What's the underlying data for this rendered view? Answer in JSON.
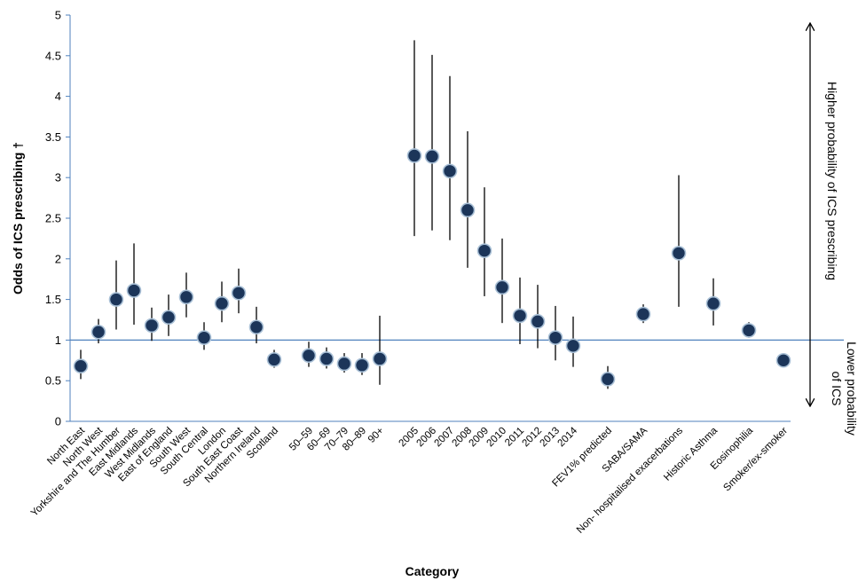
{
  "chart_data": {
    "type": "scatter",
    "title": "",
    "xlabel": "Category",
    "ylabel": "Odds of ICS prescribing †",
    "ylim": [
      0,
      5
    ],
    "yticks": [
      0,
      0.5,
      1,
      1.5,
      2,
      2.5,
      3,
      3.5,
      4,
      4.5,
      5
    ],
    "reference_line": 1,
    "annotations": {
      "upper": "Higher probability of ICS prescribing",
      "lower_line1": "Lower probability",
      "lower_line2": "of ICS"
    },
    "points": [
      {
        "category": "North East",
        "value": 0.68,
        "low": 0.52,
        "high": 0.88
      },
      {
        "category": "North West",
        "value": 1.1,
        "low": 0.96,
        "high": 1.26
      },
      {
        "category": "Yorkshire and The Humber",
        "value": 1.5,
        "low": 1.13,
        "high": 1.98
      },
      {
        "category": "East Midlands",
        "value": 1.61,
        "low": 1.19,
        "high": 2.19
      },
      {
        "category": "West Midlands",
        "value": 1.18,
        "low": 0.99,
        "high": 1.4
      },
      {
        "category": "East of England",
        "value": 1.28,
        "low": 1.05,
        "high": 1.56
      },
      {
        "category": "South West",
        "value": 1.53,
        "low": 1.28,
        "high": 1.83
      },
      {
        "category": "South Central",
        "value": 1.03,
        "low": 0.88,
        "high": 1.22
      },
      {
        "category": "London",
        "value": 1.45,
        "low": 1.22,
        "high": 1.72
      },
      {
        "category": "South East Coast",
        "value": 1.58,
        "low": 1.33,
        "high": 1.88
      },
      {
        "category": "Northern Ireland",
        "value": 1.16,
        "low": 0.96,
        "high": 1.41
      },
      {
        "category": "Scotland",
        "value": 0.76,
        "low": 0.66,
        "high": 0.88
      },
      {
        "category": "50–59",
        "value": 0.81,
        "low": 0.67,
        "high": 0.98
      },
      {
        "category": "60–69",
        "value": 0.77,
        "low": 0.65,
        "high": 0.91
      },
      {
        "category": "70–79",
        "value": 0.71,
        "low": 0.6,
        "high": 0.84
      },
      {
        "category": "80–89",
        "value": 0.69,
        "low": 0.57,
        "high": 0.84
      },
      {
        "category": "90+",
        "value": 0.77,
        "low": 0.45,
        "high": 1.3
      },
      {
        "category": "2005",
        "value": 3.27,
        "low": 2.28,
        "high": 4.69
      },
      {
        "category": "2006",
        "value": 3.26,
        "low": 2.35,
        "high": 4.51
      },
      {
        "category": "2007",
        "value": 3.08,
        "low": 2.23,
        "high": 4.25
      },
      {
        "category": "2008",
        "value": 2.6,
        "low": 1.89,
        "high": 3.57
      },
      {
        "category": "2009",
        "value": 2.1,
        "low": 1.54,
        "high": 2.88
      },
      {
        "category": "2010",
        "value": 1.65,
        "low": 1.21,
        "high": 2.25
      },
      {
        "category": "2011",
        "value": 1.3,
        "low": 0.95,
        "high": 1.77
      },
      {
        "category": "2012",
        "value": 1.23,
        "low": 0.9,
        "high": 1.68
      },
      {
        "category": "2013",
        "value": 1.03,
        "low": 0.75,
        "high": 1.42
      },
      {
        "category": "2014",
        "value": 0.93,
        "low": 0.67,
        "high": 1.29
      },
      {
        "category": "FEV1% predicted",
        "value": 0.52,
        "low": 0.4,
        "high": 0.68
      },
      {
        "category": "SABA/SAMA",
        "value": 1.32,
        "low": 1.21,
        "high": 1.44
      },
      {
        "category": "Non- hospitalised exacerbations",
        "value": 2.07,
        "low": 1.41,
        "high": 3.03
      },
      {
        "category": "Historic Asthma",
        "value": 1.45,
        "low": 1.18,
        "high": 1.76
      },
      {
        "category": "Eosinophilia",
        "value": 1.12,
        "low": 1.03,
        "high": 1.22
      },
      {
        "category": "Smoker/ex-smoker",
        "value": 0.75,
        "low": 0.72,
        "high": 0.78
      }
    ]
  }
}
